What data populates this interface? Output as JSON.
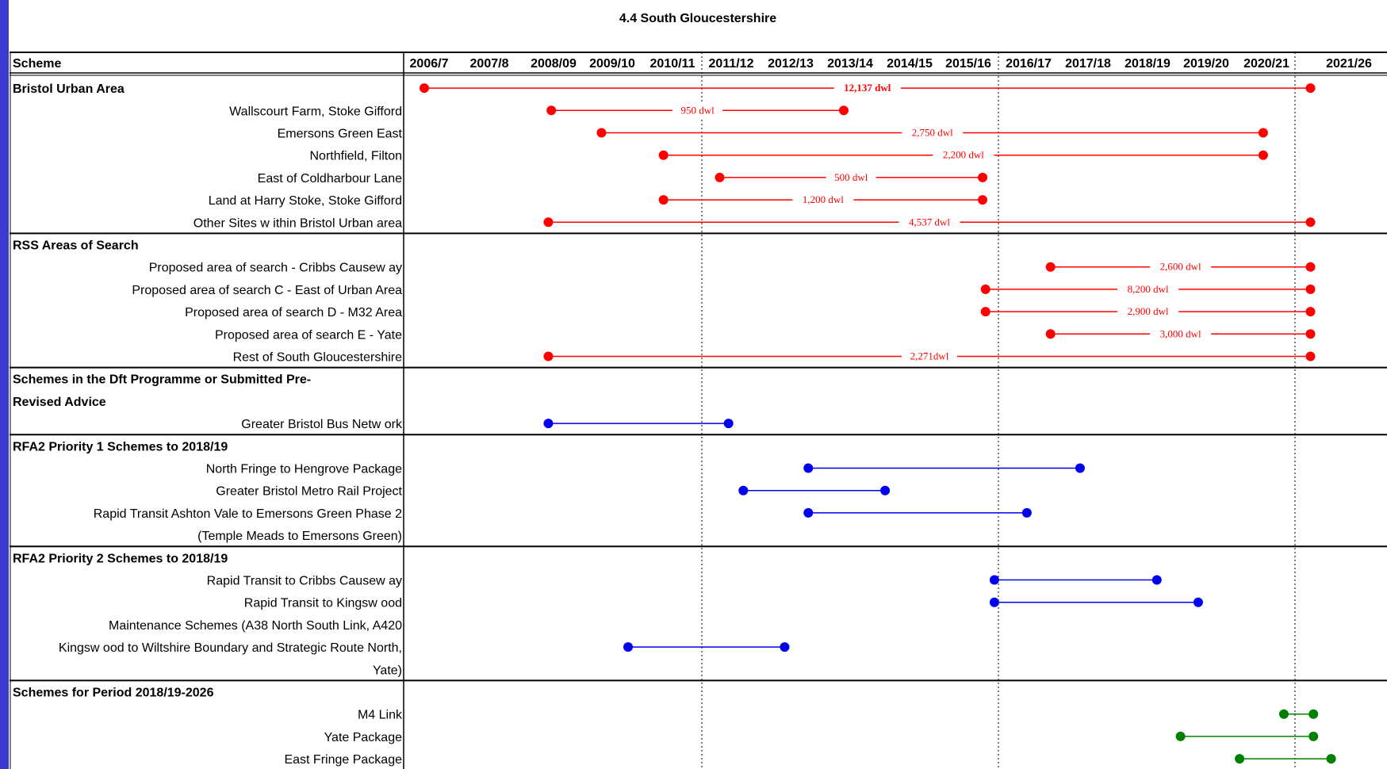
{
  "chart_data": {
    "type": "gantt",
    "title": "4.4 South Gloucestershire",
    "scheme_header": "Scheme",
    "years": [
      "2006/7",
      "2007/8",
      "2008/09",
      "2009/10",
      "2010/11",
      "2011/12",
      "2012/13",
      "2013/14",
      "2014/15",
      "2015/16",
      "2016/17",
      "2017/18",
      "2018/19",
      "2019/20",
      "2020/21",
      "2021/26"
    ],
    "colors": {
      "red": "#ff0000",
      "blue": "#0000ee",
      "green": "#008000"
    },
    "rows": [
      {
        "kind": "section",
        "text": "Bristol Urban Area",
        "bar": {
          "start": 0.0,
          "end": 15.0,
          "color": "red",
          "label": "12,137 dwl",
          "bold": true
        }
      },
      {
        "kind": "item",
        "text": "Wallscourt Farm, Stoke Gifford",
        "bar": {
          "start": 2.15,
          "end": 7.1,
          "color": "red",
          "label": "950 dwl"
        }
      },
      {
        "kind": "item",
        "text": "Emersons Green East",
        "bar": {
          "start": 3.0,
          "end": 14.2,
          "color": "red",
          "label": "2,750 dwl"
        }
      },
      {
        "kind": "item",
        "text": "Northfield, Filton",
        "bar": {
          "start": 4.05,
          "end": 14.2,
          "color": "red",
          "label": "2,200 dwl"
        }
      },
      {
        "kind": "item",
        "text": "East of Coldharbour Lane",
        "bar": {
          "start": 5.0,
          "end": 9.45,
          "color": "red",
          "label": "500 dwl"
        }
      },
      {
        "kind": "item",
        "text": "Land at Harry Stoke, Stoke Gifford",
        "bar": {
          "start": 4.05,
          "end": 9.45,
          "color": "red",
          "label": "1,200 dwl"
        }
      },
      {
        "kind": "item",
        "text": "Other Sites w ithin Bristol Urban area",
        "bar": {
          "start": 2.1,
          "end": 15.0,
          "color": "red",
          "label": "4,537 dwl"
        }
      },
      {
        "kind": "section",
        "text": "RSS Areas of Search"
      },
      {
        "kind": "item",
        "text": "Proposed area of search - Cribbs Causew ay",
        "bar": {
          "start": 10.6,
          "end": 15.0,
          "color": "red",
          "label": "2,600 dwl"
        }
      },
      {
        "kind": "item",
        "text": "Proposed area of search C - East of Urban Area",
        "bar": {
          "start": 9.5,
          "end": 15.0,
          "color": "red",
          "label": "8,200 dwl"
        }
      },
      {
        "kind": "item",
        "text": "Proposed area of search D - M32 Area",
        "bar": {
          "start": 9.5,
          "end": 15.0,
          "color": "red",
          "label": "2,900 dwl"
        }
      },
      {
        "kind": "item",
        "text": "Proposed area of search E - Yate",
        "bar": {
          "start": 10.6,
          "end": 15.0,
          "color": "red",
          "label": "3,000 dwl"
        }
      },
      {
        "kind": "item",
        "text": "Rest of South Gloucestershire",
        "bar": {
          "start": 2.1,
          "end": 15.0,
          "color": "red",
          "label": "2,271dwl"
        }
      },
      {
        "kind": "section",
        "text": "Schemes in the Dft Programme or Submitted Pre-"
      },
      {
        "kind": "section",
        "text": "Revised Advice"
      },
      {
        "kind": "item",
        "text": "Greater Bristol Bus Netw ork",
        "bar": {
          "start": 2.1,
          "end": 5.15,
          "color": "blue"
        }
      },
      {
        "kind": "section",
        "text": "RFA2 Priority 1 Schemes to 2018/19"
      },
      {
        "kind": "item",
        "text": "North Fringe to Hengrove Package",
        "bar": {
          "start": 6.5,
          "end": 11.1,
          "color": "blue"
        }
      },
      {
        "kind": "item",
        "text": "Greater Bristol Metro Rail Project",
        "bar": {
          "start": 5.4,
          "end": 7.8,
          "color": "blue"
        }
      },
      {
        "kind": "item",
        "text": "Rapid Transit Ashton Vale to Emersons Green Phase 2",
        "bar": {
          "start": 6.5,
          "end": 10.2,
          "color": "blue"
        }
      },
      {
        "kind": "item",
        "text": "(Temple Meads to Emersons Green)"
      },
      {
        "kind": "section",
        "text": "RFA2 Priority 2 Schemes to 2018/19"
      },
      {
        "kind": "item",
        "text": "Rapid Transit to Cribbs Causew ay",
        "bar": {
          "start": 9.65,
          "end": 12.4,
          "color": "blue"
        }
      },
      {
        "kind": "item",
        "text": "Rapid Transit to Kingsw ood",
        "bar": {
          "start": 9.65,
          "end": 13.1,
          "color": "blue"
        }
      },
      {
        "kind": "item",
        "text": "Maintenance Schemes (A38 North South Link, A420"
      },
      {
        "kind": "item",
        "text": "Kingsw ood to Wiltshire Boundary and Strategic Route North,",
        "bar": {
          "start": 3.45,
          "end": 6.1,
          "color": "blue"
        }
      },
      {
        "kind": "item",
        "text": "Yate)"
      },
      {
        "kind": "section",
        "text": "Schemes for Period 2018/19-2026"
      },
      {
        "kind": "item",
        "text": "M4 Link",
        "bar": {
          "start": 14.55,
          "end": 15.05,
          "color": "green"
        }
      },
      {
        "kind": "item",
        "text": "Yate Package",
        "bar": {
          "start": 12.8,
          "end": 15.05,
          "color": "green"
        }
      },
      {
        "kind": "item",
        "text": "East Fringe Package",
        "bar": {
          "start": 13.8,
          "end": 15.35,
          "color": "green"
        }
      }
    ]
  }
}
